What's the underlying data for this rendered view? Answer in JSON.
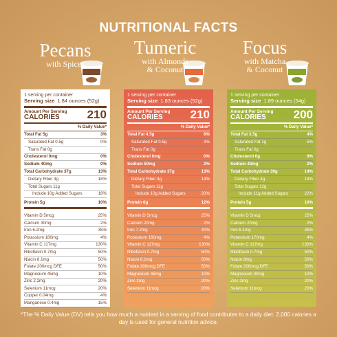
{
  "title": "NUTRITIONAL FACTS",
  "products": [
    {
      "name": "Pecans",
      "subtitle": [
        "with Spices"
      ],
      "serving_count": "1 serving per container",
      "serving_label": "Serving size",
      "serving_size": "1.84 ounces (52g)",
      "amount_label": "Amount Per Serving",
      "calories_label": "CALORIES",
      "calories": 210,
      "dv_header": "% Daily Value*",
      "nutrients": [
        {
          "label": "Total Fat 5g",
          "dv": "3%"
        },
        {
          "label": "Saturated Fat 0.5g",
          "dv": "0%"
        },
        {
          "label": "Trans Fat 0g"
        },
        {
          "label": "Cholesterol 0mg",
          "dv": "0%"
        },
        {
          "label": "Sodium 40mg",
          "dv": "0%"
        },
        {
          "label": "Total Carbohydrate 37g",
          "dv": "13%"
        },
        {
          "label": "Dietary Fiber 4g",
          "dv": "18%"
        },
        {
          "label": "Total Sugars 11g"
        },
        {
          "label": "Include 10g Added Sugars",
          "dv": "18%"
        },
        {
          "label": "Protein 5g",
          "dv": "10%"
        }
      ],
      "vitamins": [
        {
          "label": "Vitamin D 5mcg",
          "dv": "25%"
        },
        {
          "label": "Calcium 30mg",
          "dv": "2%"
        },
        {
          "label": "Iron 6.2mg",
          "dv": "35%"
        },
        {
          "label": "Potassium 180mg",
          "dv": "4%"
        },
        {
          "label": "Vitamin C 117mg",
          "dv": "130%"
        },
        {
          "label": "Riboflavin 0.7mg",
          "dv": "50%"
        },
        {
          "label": "Niacin 8.1mg",
          "dv": "50%"
        },
        {
          "label": "Folate 200mcg DFE",
          "dv": "50%"
        },
        {
          "label": "Magnesium 45mg",
          "dv": "10%"
        },
        {
          "label": "Zinc 2.2mg",
          "dv": "20%"
        },
        {
          "label": "Selenium 11mcg",
          "dv": "20%"
        },
        {
          "label": "Copper 0.04mg",
          "dv": "4%"
        },
        {
          "label": "Manganese 0.4mg",
          "dv": "15%"
        }
      ]
    },
    {
      "name": "Tumeric",
      "subtitle": [
        "with Almonds",
        "& Coconut"
      ],
      "serving_count": "1 serving per container",
      "serving_label": "Serving size",
      "serving_size": "1.83 ounces (52g)",
      "amount_label": "Amount Per Serving",
      "calories_label": "CALORIES",
      "calories": 210,
      "dv_header": "% Daily Value*",
      "nutrients": [
        {
          "label": "Total Fat 4.5g",
          "dv": "6%"
        },
        {
          "label": "Saturated Fat 0.5g",
          "dv": "3%"
        },
        {
          "label": "Trans Fat 0g"
        },
        {
          "label": "Cholesterol 0mg",
          "dv": "0%"
        },
        {
          "label": "Sodium 50mg",
          "dv": "2%"
        },
        {
          "label": "Total Carbohydrate 37g",
          "dv": "13%"
        },
        {
          "label": "Dietary Fiber 4g",
          "dv": "14%"
        },
        {
          "label": "Total Sugars 11g"
        },
        {
          "label": "Include 10g Added Sugars",
          "dv": "20%"
        },
        {
          "label": "Protein 6g",
          "dv": "12%"
        }
      ],
      "vitamins": [
        {
          "label": "Vitamin D 5mcg",
          "dv": "25%"
        },
        {
          "label": "Calcium 20mg",
          "dv": "2%"
        },
        {
          "label": "Iron 7.2mg",
          "dv": "40%"
        },
        {
          "label": "Potassium 160mg",
          "dv": "4%"
        },
        {
          "label": "Vitamin C 117mg",
          "dv": "130%"
        },
        {
          "label": "Riboflavin 0.7mg",
          "dv": "50%"
        },
        {
          "label": "Niacin 8.1mg",
          "dv": "50%"
        },
        {
          "label": "Folate 200mcg DFE",
          "dv": "50%"
        },
        {
          "label": "Magnesium 45mg",
          "dv": "10%"
        },
        {
          "label": "Zinc 2mg",
          "dv": "20%"
        },
        {
          "label": "Selenium 11mcg",
          "dv": "20%"
        }
      ]
    },
    {
      "name": "Focus",
      "subtitle": [
        "with Matcha",
        "& Coconut"
      ],
      "serving_count": "1 serving per container",
      "serving_label": "Serving size",
      "serving_size": "1.89 ounces (54g)",
      "amount_label": "Amount Per Serving",
      "calories_label": "CALORIES",
      "calories": 200,
      "dv_header": "% Daily Value*",
      "nutrients": [
        {
          "label": "Total Fat 3.5g",
          "dv": "4%"
        },
        {
          "label": "Saturated Fat 1g",
          "dv": "5%"
        },
        {
          "label": "Trans Fat 0g"
        },
        {
          "label": "Cholesterol 0g",
          "dv": "0%"
        },
        {
          "label": "Sodium 40mg",
          "dv": "2%"
        },
        {
          "label": "Total Carbohydrate 39g",
          "dv": "14%"
        },
        {
          "label": "Dietary Fiber 4g",
          "dv": "14%"
        },
        {
          "label": "Total Sugars 12g"
        },
        {
          "label": "Include 11g Added Sugars",
          "dv": "22%"
        },
        {
          "label": "Protein 5g",
          "dv": "10%"
        }
      ],
      "vitamins": [
        {
          "label": "Vitamin D 5mcg",
          "dv": "25%"
        },
        {
          "label": "Calcium 20mg",
          "dv": "2%"
        },
        {
          "label": "Iron 6.1mg",
          "dv": "35%"
        },
        {
          "label": "Potassium 170mg",
          "dv": "4%"
        },
        {
          "label": "Vitamin C 117mg",
          "dv": "130%"
        },
        {
          "label": "Riboflavin 0.7mg",
          "dv": "50%"
        },
        {
          "label": "Niacin 8mg",
          "dv": "50%"
        },
        {
          "label": "Folate 200mcg DFE",
          "dv": "50%"
        },
        {
          "label": "Magnesium 40mg",
          "dv": "10%"
        },
        {
          "label": "Zinc 2mg",
          "dv": "20%"
        },
        {
          "label": "Selenium 11mcg",
          "dv": "20%"
        }
      ]
    }
  ],
  "footnote": "*The % Daily Value (DV) tells you how much a nutrient in a serving of food contributes to a daily diet. 2,000 calories a day is used for general nutrition advice."
}
